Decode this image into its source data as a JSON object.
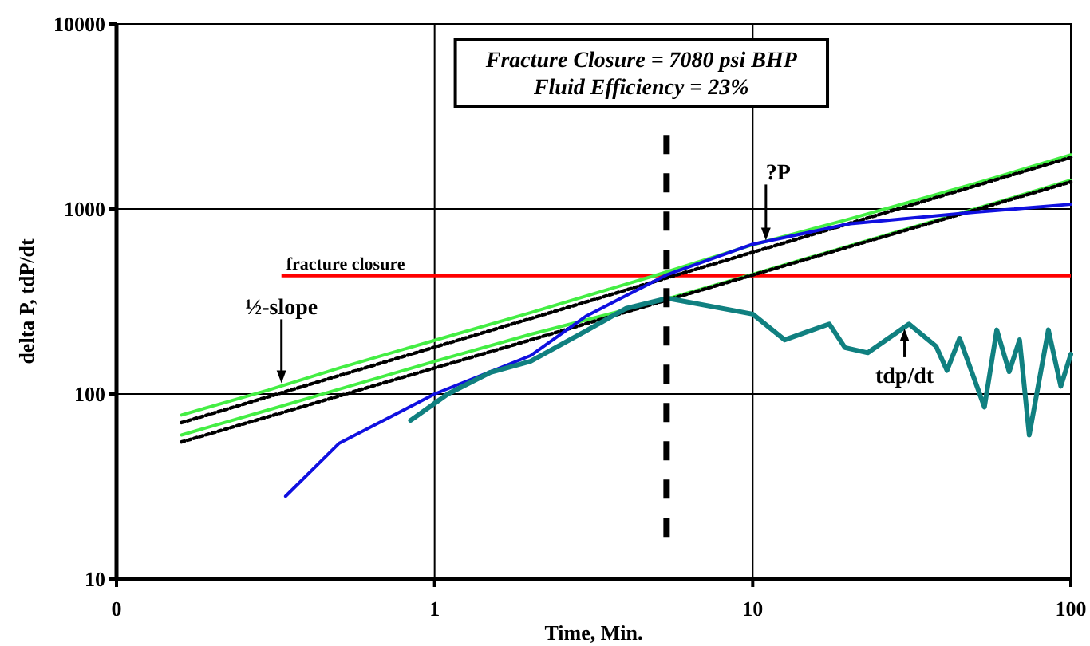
{
  "chart_data": {
    "type": "line",
    "xlabel": "Time, Min.",
    "ylabel": "delta P, tdP/dt",
    "log": "xy",
    "grid": true,
    "marker": "none",
    "xlim": [
      0.1,
      100
    ],
    "xticks": [
      {
        "value": 0.1,
        "label": "0"
      },
      1,
      10,
      100
    ],
    "ylim": [
      10,
      10000
    ],
    "yticks": [
      10,
      100,
      1000,
      10000
    ],
    "series": [
      {
        "color": "#44ee44",
        "x": [
          0.16,
          0.3,
          0.5,
          1,
          2,
          5,
          10,
          20,
          50,
          100
        ],
        "values": [
          77,
          105,
          138,
          195,
          275,
          440,
          640,
          880,
          1370,
          1960
        ]
      },
      {
        "color": "#44ee44",
        "x": [
          0.16,
          0.3,
          0.5,
          1,
          2,
          5,
          10,
          20,
          50,
          100
        ],
        "values": [
          60,
          82,
          106,
          150,
          210,
          315,
          443,
          630,
          1000,
          1430
        ]
      },
      {
        "color": "#000000",
        "line_style": "dotted",
        "x": [
          0.16,
          100
        ],
        "values": [
          70,
          1900
        ]
      },
      {
        "color": "#000000",
        "line_style": "dotted",
        "x": [
          0.16,
          100
        ],
        "values": [
          55,
          1400
        ]
      },
      {
        "color": "#1010e0",
        "x": [
          0.34,
          0.5,
          1,
          2,
          3,
          5.36,
          10,
          20,
          50,
          100
        ],
        "values": [
          28,
          54,
          100,
          161,
          264,
          440,
          645,
          830,
          960,
          1060
        ]
      },
      {
        "color": "#108080",
        "x": [
          0.84,
          1,
          1.1,
          1.5,
          2,
          3,
          4,
          5.4,
          10,
          12.6,
          17.4,
          19.5,
          23,
          31,
          37.7,
          40.8,
          44.7,
          53.5,
          58.5,
          64,
          69,
          74,
          85,
          93,
          100
        ],
        "values": [
          72,
          89,
          100,
          131,
          150,
          220,
          290,
          329,
          270,
          196,
          239,
          178,
          167,
          239,
          181,
          134,
          200,
          85,
          222,
          132,
          196,
          60,
          222,
          110,
          164
        ]
      }
    ],
    "ref_lines": [
      {
        "axis": "y",
        "value": 435,
        "label": "fracture closure",
        "color": "#ff0000",
        "line_style": "solid"
      },
      {
        "axis": "x",
        "value": 5.36,
        "color": "#000000",
        "line_style": "dashed"
      }
    ],
    "annotations": [
      "Fracture Closure = 7080 psi BHP",
      "Fluid Efficiency = 23%",
      {
        "text": "½-slope",
        "x": 0.33,
        "y": 110
      },
      {
        "text": "?P",
        "x": 11,
        "y": 650
      },
      {
        "text": "tdp/dt",
        "x": 30,
        "y": 235
      }
    ]
  }
}
